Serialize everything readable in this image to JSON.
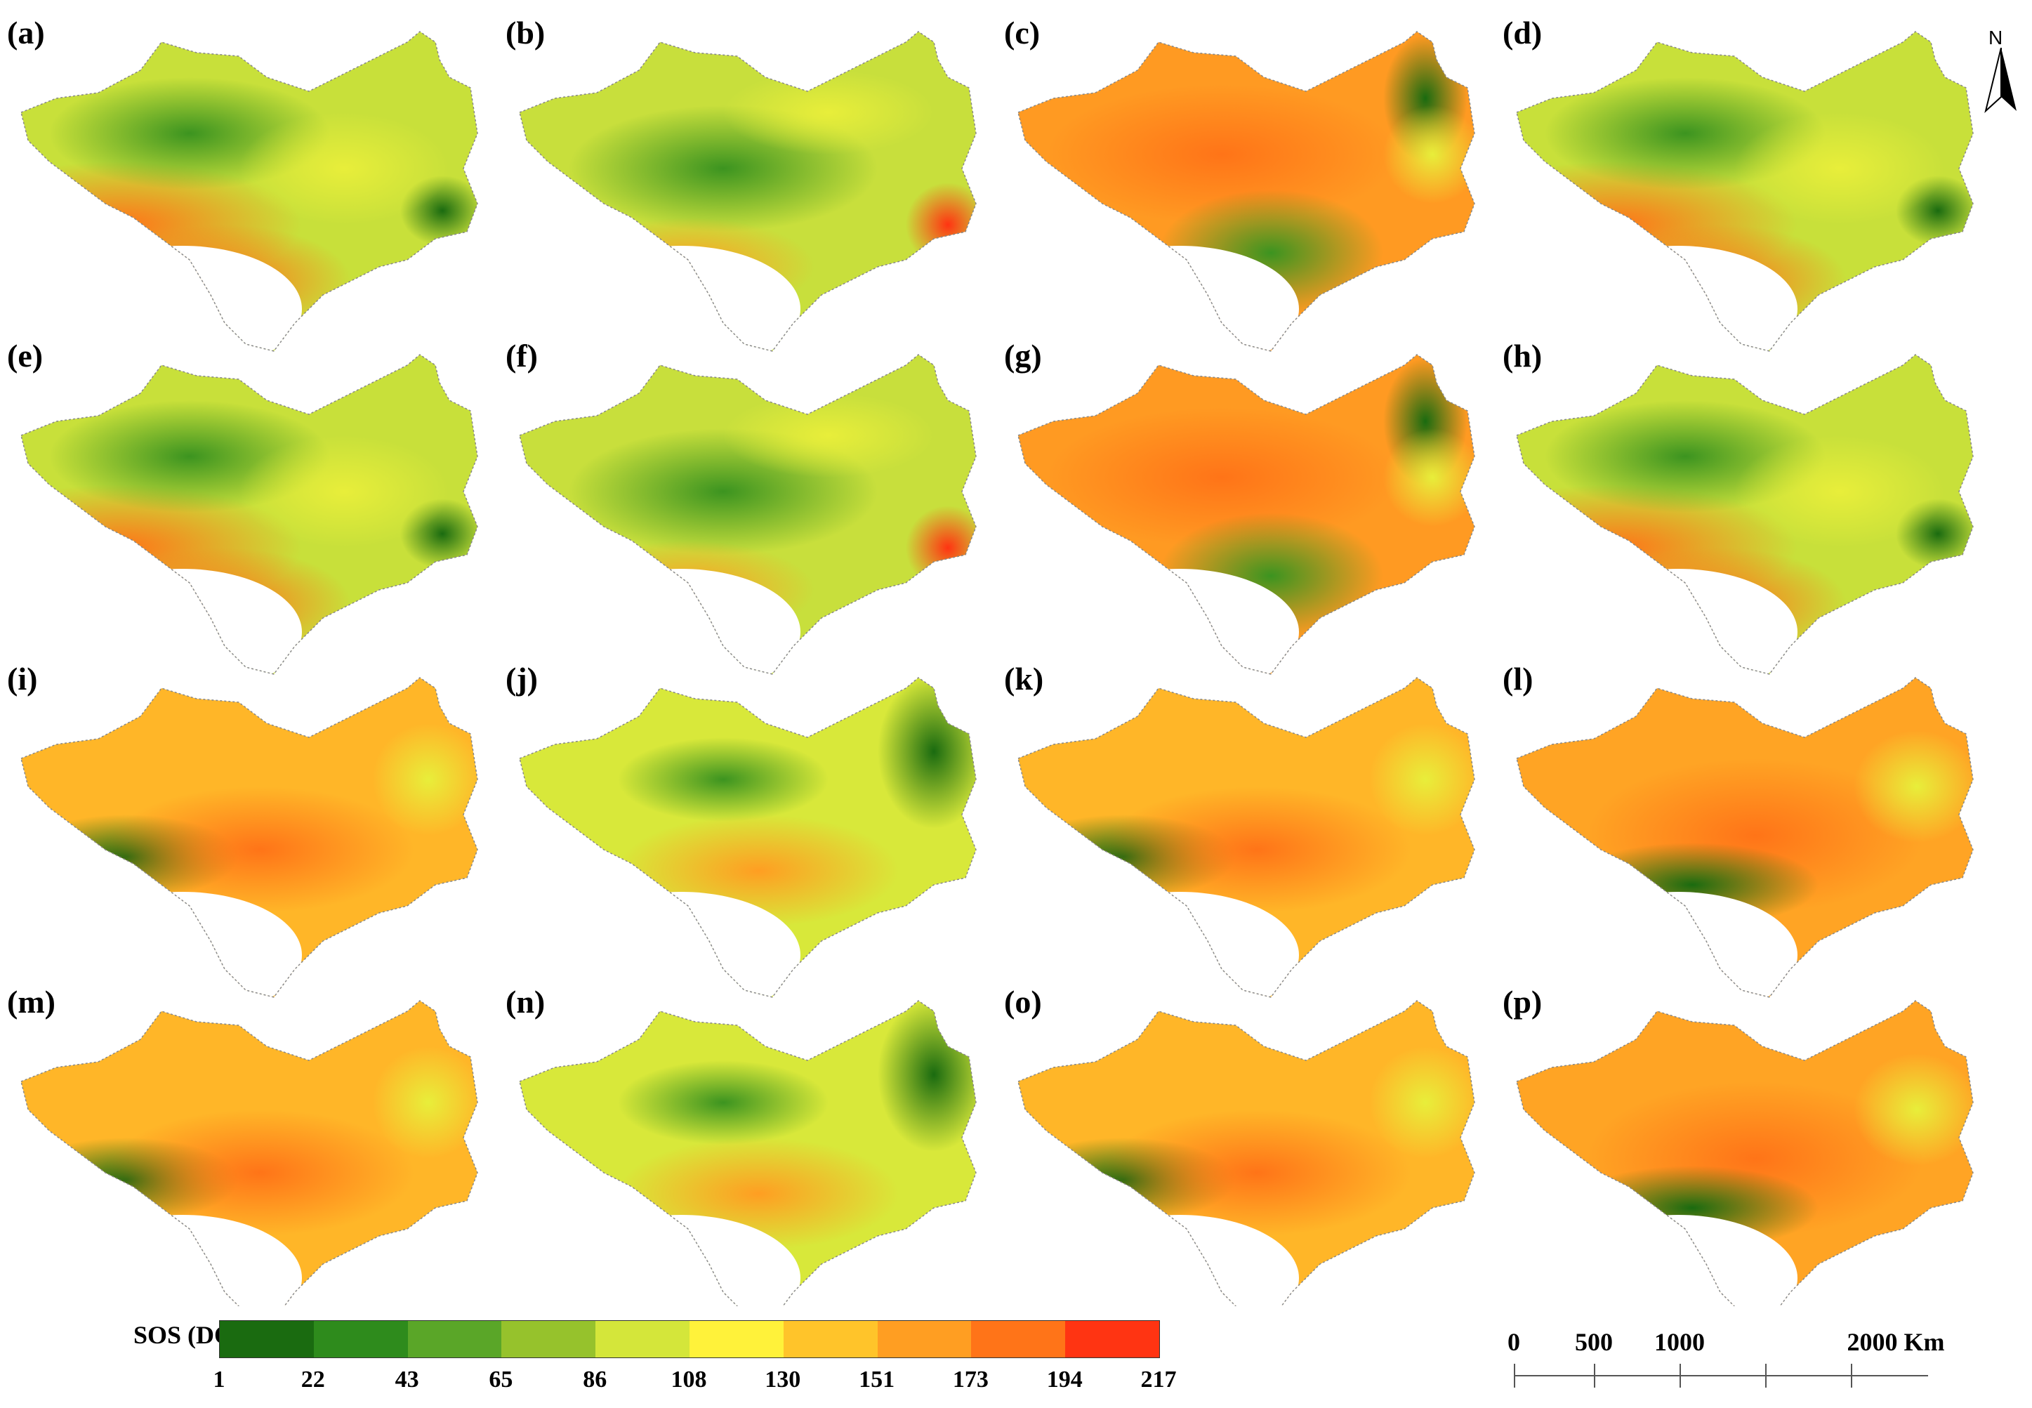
{
  "panels": [
    {
      "label": "(a)",
      "scheme": "a"
    },
    {
      "label": "(b)",
      "scheme": "b"
    },
    {
      "label": "(c)",
      "scheme": "c"
    },
    {
      "label": "(d)",
      "scheme": "a"
    },
    {
      "label": "(e)",
      "scheme": "a"
    },
    {
      "label": "(f)",
      "scheme": "b"
    },
    {
      "label": "(g)",
      "scheme": "c"
    },
    {
      "label": "(h)",
      "scheme": "a"
    },
    {
      "label": "(i)",
      "scheme": "i"
    },
    {
      "label": "(j)",
      "scheme": "j"
    },
    {
      "label": "(k)",
      "scheme": "i"
    },
    {
      "label": "(l)",
      "scheme": "l"
    },
    {
      "label": "(m)",
      "scheme": "i"
    },
    {
      "label": "(n)",
      "scheme": "j"
    },
    {
      "label": "(o)",
      "scheme": "i"
    },
    {
      "label": "(p)",
      "scheme": "l"
    }
  ],
  "legend": {
    "title": "SOS (DOY)",
    "ticks": [
      "1",
      "22",
      "43",
      "65",
      "86",
      "108",
      "130",
      "151",
      "173",
      "194",
      "217"
    ],
    "colors": [
      "#1a6b10",
      "#2e8b1c",
      "#5aa628",
      "#96c22c",
      "#d4e63a",
      "#fff23a",
      "#ffc42a",
      "#ff9e22",
      "#ff7418",
      "#ff3412"
    ]
  },
  "scale_bar": {
    "labels": [
      "0",
      "500",
      "1000",
      "2000 Km"
    ]
  },
  "north_arrow": {
    "letter": "N"
  }
}
